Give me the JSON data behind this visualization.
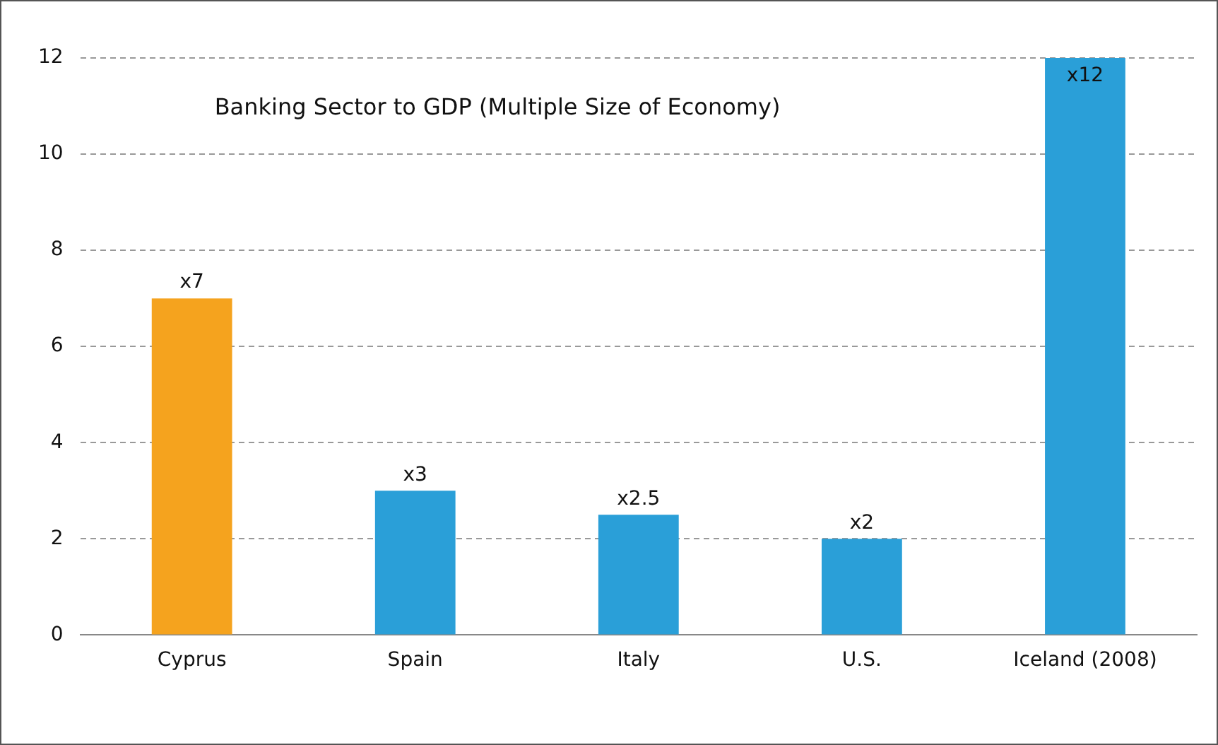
{
  "chart_data": {
    "type": "bar",
    "title": "Banking Sector to GDP (Multiple Size of Economy)",
    "categories": [
      "Cyprus",
      "Spain",
      "Italy",
      "U.S.",
      "Iceland (2008)"
    ],
    "values": [
      7,
      3,
      2.5,
      2,
      12
    ],
    "colors": [
      "#f5a31e",
      "#2a9fd8",
      "#2a9fd8",
      "#2a9fd8",
      "#2a9fd8"
    ],
    "value_labels": [
      "x7",
      "x3",
      "x2.5",
      "x2",
      "x12"
    ],
    "ylim": [
      0,
      12
    ],
    "yticks": [
      0,
      2,
      4,
      6,
      8,
      10,
      12
    ],
    "grid": "y",
    "legend": false
  }
}
